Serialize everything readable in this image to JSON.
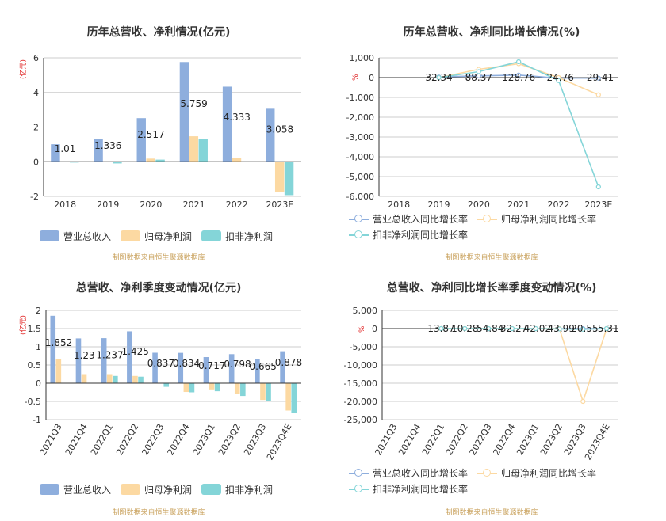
{
  "panels": [
    {
      "title": "历年总营收、净利情况(亿元)",
      "unit": "(亿元)",
      "source": "制图数据来自恒生聚源数据库",
      "legend": [
        "营业总收入",
        "归母净利润",
        "扣非净利润"
      ]
    },
    {
      "title": "历年总营收、净利同比增长情况(%)",
      "unit": "%",
      "source": "制图数据来自恒生聚源数据库",
      "legend": [
        "营业总收入同比增长率",
        "归母净利润同比增长率",
        "扣非净利润同比增长率"
      ]
    },
    {
      "title": "总营收、净利季度变动情况(亿元)",
      "unit": "(亿元)",
      "source": "制图数据来自恒生聚源数据库",
      "legend": [
        "营业总收入",
        "归母净利润",
        "扣非净利润"
      ]
    },
    {
      "title": "总营收、净利同比增长率季度变动情况(%)",
      "unit": "%",
      "source": "制图数据来自恒生聚源数据库",
      "legend": [
        "营业总收入同比增长率",
        "归母净利润同比增长率",
        "扣非净利润同比增长率"
      ]
    }
  ],
  "colors": {
    "revenue": "#8eaedd",
    "parent": "#fcd9a2",
    "deducted": "#84d5d8",
    "grid": "#cccccc",
    "axis": "#333333"
  },
  "chart_data": [
    {
      "type": "bar",
      "title": "历年总营收、净利情况(亿元)",
      "categories": [
        "2018",
        "2019",
        "2020",
        "2021",
        "2022",
        "2023E"
      ],
      "ylim": [
        -2,
        6
      ],
      "yticks": [
        -2,
        0,
        2,
        4,
        6
      ],
      "series": [
        {
          "name": "营业总收入",
          "values": [
            1.01,
            1.336,
            2.517,
            5.759,
            4.333,
            3.058
          ]
        },
        {
          "name": "归母净利润",
          "values": [
            0.0,
            0.0,
            0.18,
            1.47,
            0.2,
            -1.75
          ]
        },
        {
          "name": "扣非净利润",
          "values": [
            -0.05,
            -0.1,
            0.12,
            1.3,
            0.0,
            -1.93
          ]
        }
      ],
      "data_labels": [
        "1.01",
        "1.336",
        "2.517",
        "5.759",
        "4.333",
        "3.058"
      ]
    },
    {
      "type": "line",
      "title": "历年总营收、净利同比增长情况(%)",
      "categories": [
        "2018",
        "2019",
        "2020",
        "2021",
        "2022",
        "2023E"
      ],
      "ylim": [
        -6000,
        1000
      ],
      "yticks": [
        1000,
        0,
        -1000,
        -2000,
        -3000,
        -4000,
        -5000,
        -6000
      ],
      "series": [
        {
          "name": "营业总收入同比增长率",
          "values": [
            null,
            32.34,
            88.37,
            128.76,
            -24.76,
            -29.41
          ]
        },
        {
          "name": "归母净利润同比增长率",
          "values": [
            null,
            0,
            420,
            700,
            0,
            -870
          ]
        },
        {
          "name": "扣非净利润同比增长率",
          "values": [
            null,
            0,
            300,
            800,
            -150,
            -5520
          ]
        }
      ],
      "data_labels": [
        "",
        "32.34",
        "88.37",
        "128.76",
        "-24.76",
        "-29.41"
      ]
    },
    {
      "type": "bar",
      "title": "总营收、净利季度变动情况(亿元)",
      "categories": [
        "2021Q3",
        "2021Q4",
        "2022Q1",
        "2022Q2",
        "2022Q3",
        "2022Q4",
        "2023Q1",
        "2023Q2",
        "2023Q3",
        "2023Q4E"
      ],
      "ylim": [
        -1,
        2
      ],
      "yticks": [
        -1,
        -0.5,
        0,
        0.5,
        1,
        1.5,
        2
      ],
      "series": [
        {
          "name": "营业总收入",
          "values": [
            1.852,
            1.23,
            1.237,
            1.425,
            0.837,
            0.834,
            0.717,
            0.798,
            0.665,
            0.878
          ]
        },
        {
          "name": "归母净利润",
          "values": [
            0.66,
            0.25,
            0.25,
            0.2,
            0.0,
            -0.24,
            -0.17,
            -0.3,
            -0.46,
            -0.75
          ]
        },
        {
          "name": "扣非净利润",
          "values": [
            0.0,
            0.0,
            0.2,
            0.18,
            -0.1,
            -0.25,
            -0.22,
            -0.35,
            -0.5,
            -0.82
          ]
        }
      ],
      "data_labels": [
        "1.852",
        "1.23",
        "1.237",
        "1.425",
        "0.837",
        "0.834",
        "0.717",
        "0.798",
        "0.665",
        "0.878"
      ]
    },
    {
      "type": "line",
      "title": "总营收、净利同比增长率季度变动情况(%)",
      "categories": [
        "2021Q3",
        "2021Q4",
        "2022Q1",
        "2022Q2",
        "2022Q3",
        "2022Q4",
        "2023Q1",
        "2023Q2",
        "2023Q3",
        "2023Q4E"
      ],
      "ylim": [
        -25000,
        5000
      ],
      "yticks": [
        5000,
        0,
        -5000,
        -10000,
        -15000,
        -20000,
        -25000
      ],
      "series": [
        {
          "name": "营业总收入同比增长率",
          "values": [
            null,
            null,
            13.87,
            10.28,
            -54.84,
            -32.27,
            -42.02,
            -43.99,
            -20.55,
            -5.31
          ]
        },
        {
          "name": "归母净利润同比增长率",
          "values": [
            null,
            null,
            0,
            0,
            0,
            0,
            0,
            0,
            -20000,
            0
          ]
        },
        {
          "name": "扣非净利润同比增长率",
          "values": [
            null,
            null,
            0,
            0,
            0,
            0,
            0,
            -100,
            -200,
            0
          ]
        }
      ],
      "data_labels": [
        "",
        "",
        "13.87",
        "10.28",
        "-54.84",
        "-32.27",
        "-42.02",
        "-43.99",
        "-20.55",
        "-5.31"
      ]
    }
  ]
}
